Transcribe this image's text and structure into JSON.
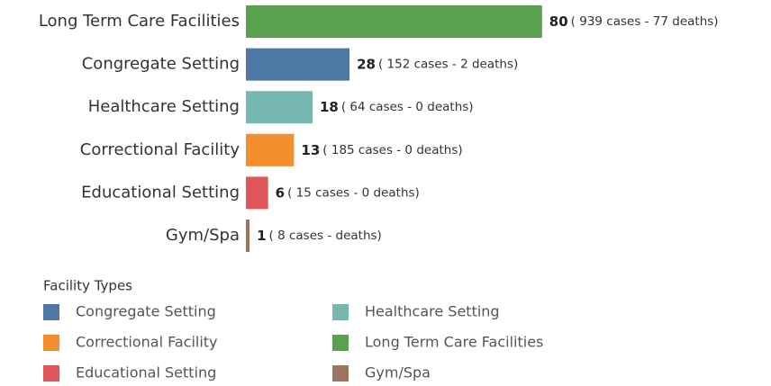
{
  "chart_data": {
    "type": "bar",
    "orientation": "horizontal",
    "categories": [
      "Long Term Care Facilities",
      "Congregate Setting",
      "Healthcare Setting",
      "Correctional Facility",
      "Educational Setting",
      "Gym/Spa"
    ],
    "values": [
      80,
      28,
      18,
      13,
      6,
      1
    ],
    "colors": [
      "#59a14f",
      "#4e79a7",
      "#76b7b2",
      "#f28e2b",
      "#e15759",
      "#9c755f"
    ],
    "details": [
      "( 939 cases - 77 deaths)",
      "( 152 cases - 2 deaths)",
      "( 64 cases - 0 deaths)",
      "( 185 cases - 0 deaths)",
      "( 15 cases - 0 deaths)",
      "( 8 cases -  deaths)"
    ],
    "legend": {
      "title": "Facility Types",
      "entries": [
        {
          "name": "Congregate Setting",
          "color": "#4e79a7"
        },
        {
          "name": "Healthcare Setting",
          "color": "#76b7b2"
        },
        {
          "name": "Correctional Facility",
          "color": "#f28e2b"
        },
        {
          "name": "Long Term Care Facilities",
          "color": "#59a14f"
        },
        {
          "name": "Educational Setting",
          "color": "#e15759"
        },
        {
          "name": "Gym/Spa",
          "color": "#9c755f"
        }
      ]
    }
  }
}
